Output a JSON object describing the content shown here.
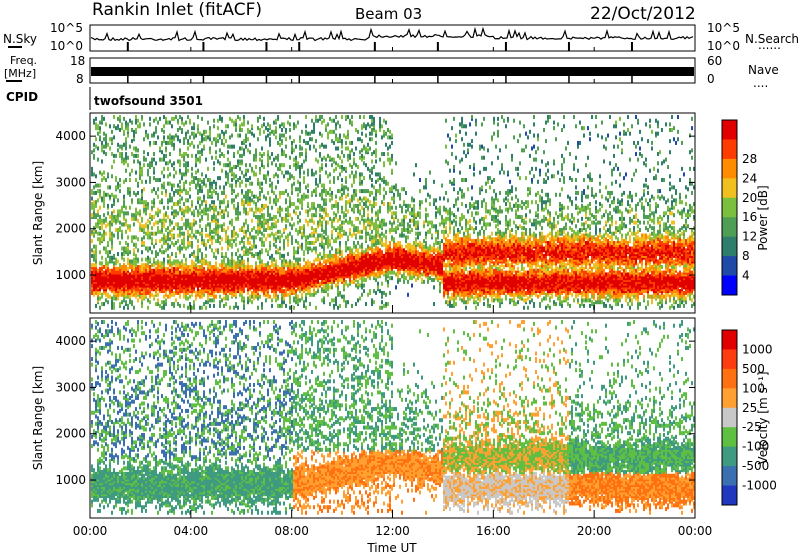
{
  "header": {
    "station": "Rankin Inlet (fitACF)",
    "beam": "Beam 03",
    "date": "22/Oct/2012"
  },
  "left_labels": {
    "nsky": "N.Sky",
    "freq_a": "Freq.",
    "freq_b": "[MHz]",
    "cpid": "CPID"
  },
  "right_labels": {
    "nsearch": "N.Search",
    "nsearch_dots": "......",
    "nave": "Nave",
    "nave_dots": "...."
  },
  "cpid_text": "twofsound 3501",
  "chart_data": [
    {
      "type": "line",
      "name": "noise",
      "left_ticks": [
        "10^5",
        "10^0"
      ],
      "right_ticks": [
        "10^5",
        "10^0"
      ]
    },
    {
      "type": "line",
      "name": "frequency",
      "left_ticks": [
        "18",
        "8"
      ],
      "right_ticks": [
        "60",
        "0"
      ]
    },
    {
      "type": "heatmap",
      "name": "power",
      "ylabel": "Slant Range [km]",
      "yticks": [
        1000,
        2000,
        3000,
        4000
      ],
      "ylim": [
        180,
        4500
      ],
      "xlim": [
        0,
        24
      ],
      "colorbar": {
        "label": "Power [dB]",
        "ticks": [
          "4",
          "8",
          "12",
          "16",
          "20",
          "24",
          "28"
        ],
        "colors": [
          "#0000ff",
          "#1f4aa8",
          "#2f7e6c",
          "#4f9e55",
          "#7bbf3e",
          "#f0c020",
          "#ff8c00",
          "#ff3c00",
          "#e00000"
        ]
      }
    },
    {
      "type": "heatmap",
      "name": "velocity",
      "ylabel": "Slant Range [km]",
      "yticks": [
        1000,
        2000,
        3000,
        4000
      ],
      "ylim": [
        180,
        4500
      ],
      "xlim": [
        0,
        24
      ],
      "colorbar": {
        "label": "Velocity [m s⁻¹]",
        "ticks": [
          "1000",
          "500",
          "100",
          "25",
          "-25",
          "-100",
          "-500",
          "-1000"
        ],
        "colors": [
          "#2038c0",
          "#3a6fb0",
          "#3e9a80",
          "#5fbf40",
          "#c8c8c8",
          "#ffa030",
          "#ff7010",
          "#ff3c10",
          "#e00000"
        ]
      }
    }
  ],
  "xaxis": {
    "label": "Time UT",
    "ticks": [
      "00:00",
      "04:00",
      "08:00",
      "12:00",
      "16:00",
      "20:00",
      "00:00"
    ]
  }
}
